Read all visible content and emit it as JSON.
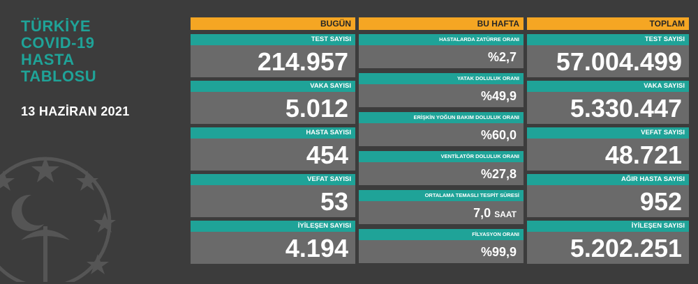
{
  "headline": [
    "TÜRKİYE",
    "COVID-19",
    "HASTA",
    "TABLOSU"
  ],
  "date": "13 HAZİRAN 2021",
  "columns": {
    "bugun": {
      "header": "BUGÜN",
      "cards": [
        {
          "label": "TEST SAYISI",
          "value": "214.957"
        },
        {
          "label": "VAKA SAYISI",
          "value": "5.012"
        },
        {
          "label": "HASTA SAYISI",
          "value": "454"
        },
        {
          "label": "VEFAT SAYISI",
          "value": "53"
        },
        {
          "label": "İYİLEŞEN SAYISI",
          "value": "4.194"
        }
      ]
    },
    "bu_hafta": {
      "header": "BU HAFTA",
      "cards": [
        {
          "label": "HASTALARDA ZATÜRRE ORANI",
          "value": "%2,7",
          "unit": ""
        },
        {
          "label": "YATAK DOLULUK ORANI",
          "value": "%49,9",
          "unit": ""
        },
        {
          "label": "ERİŞKİN YOĞUN BAKIM DOLULUK ORANI",
          "value": "%60,0",
          "unit": ""
        },
        {
          "label": "VENTİLATÖR DOLULUK ORANI",
          "value": "%27,8",
          "unit": ""
        },
        {
          "label": "ORTALAMA TEMASLI TESPİT SÜRESİ",
          "value": "7,0",
          "unit": "SAAT"
        },
        {
          "label": "FİLYASYON ORANI",
          "value": "%99,9",
          "unit": ""
        }
      ]
    },
    "toplam": {
      "header": "TOPLAM",
      "cards": [
        {
          "label": "TEST SAYISI",
          "value": "57.004.499"
        },
        {
          "label": "VAKA SAYISI",
          "value": "5.330.447"
        },
        {
          "label": "VEFAT SAYISI",
          "value": "48.721"
        },
        {
          "label": "AĞIR HASTA SAYISI",
          "value": "952"
        },
        {
          "label": "İYİLEŞEN SAYISI",
          "value": "5.202.251"
        }
      ]
    }
  },
  "colors": {
    "background": "#3c3c3c",
    "accent_teal": "#1fa398",
    "header_orange": "#f5a623",
    "card_value_bg": "#6a6a6a"
  },
  "icons": [
    "ministry-emblem-icon"
  ]
}
